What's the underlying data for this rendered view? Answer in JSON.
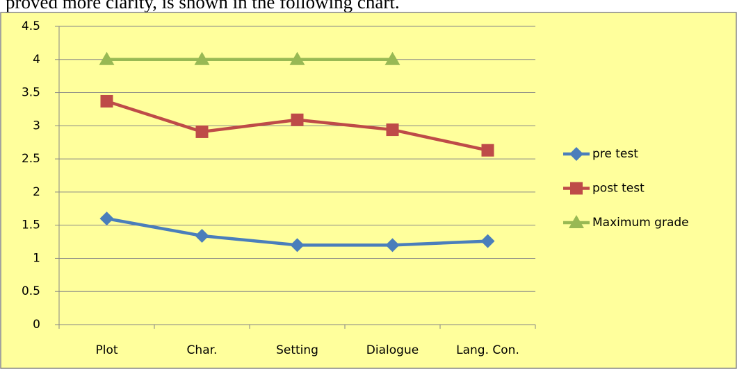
{
  "caption": "proved more clarity, is shown in the following chart.",
  "chart_data": {
    "type": "line",
    "categories": [
      "Plot",
      "Char.",
      "Setting",
      "Dialogue",
      "Lang. Con."
    ],
    "series": [
      {
        "name": "pre test",
        "color": "#4a7ebb",
        "marker": "diamond",
        "values": [
          1.6,
          1.34,
          1.2,
          1.2,
          1.26
        ]
      },
      {
        "name": "post test",
        "color": "#be4b48",
        "marker": "square",
        "values": [
          3.37,
          2.91,
          3.09,
          2.94,
          2.63
        ]
      },
      {
        "name": "Maximum grade",
        "color": "#98b954",
        "marker": "triangle",
        "values": [
          4,
          4,
          4,
          4,
          null
        ]
      }
    ],
    "ylim": [
      0,
      4.5
    ],
    "yticks": [
      0,
      0.5,
      1,
      1.5,
      2,
      2.5,
      3,
      3.5,
      4,
      4.5
    ],
    "grid": true,
    "legend": "right"
  }
}
